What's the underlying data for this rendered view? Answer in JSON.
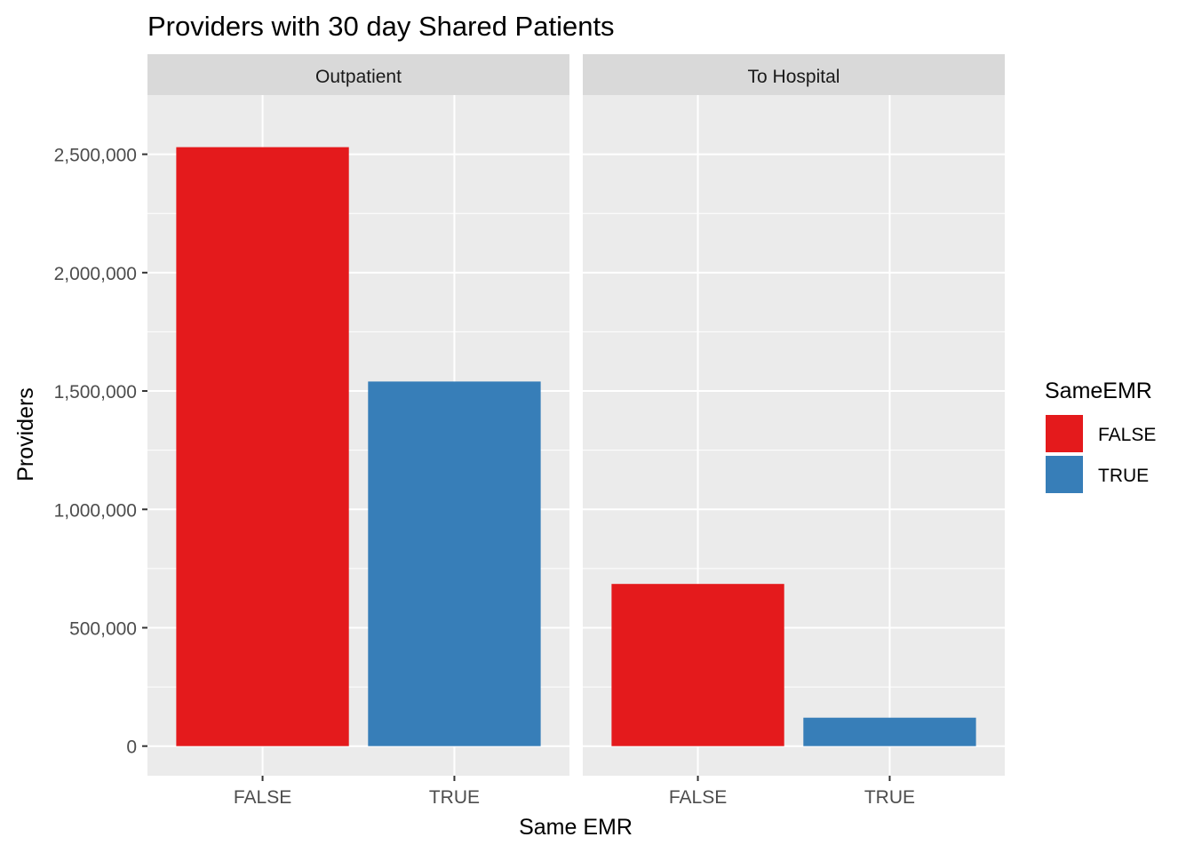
{
  "chart_data": {
    "type": "bar",
    "title": "Providers with 30 day Shared Patients",
    "xlabel": "Same EMR",
    "ylabel": "Providers",
    "ylim": [
      -125000,
      2750000
    ],
    "yticks": [
      0,
      500000,
      1000000,
      1500000,
      2000000,
      2500000
    ],
    "ytick_labels": [
      "0",
      "500,000",
      "1,000,000",
      "1,500,000",
      "2,000,000",
      "2,500,000"
    ],
    "categories": [
      "FALSE",
      "TRUE"
    ],
    "grid": true,
    "facets": [
      {
        "label": "Outpatient",
        "values": [
          2530000,
          1540000
        ]
      },
      {
        "label": "To Hospital",
        "values": [
          685000,
          120000
        ]
      }
    ],
    "legend": {
      "title": "SameEMR",
      "position": "right",
      "entries": [
        {
          "label": "FALSE",
          "color": "#E41A1C"
        },
        {
          "label": "TRUE",
          "color": "#377EB8"
        }
      ]
    }
  }
}
